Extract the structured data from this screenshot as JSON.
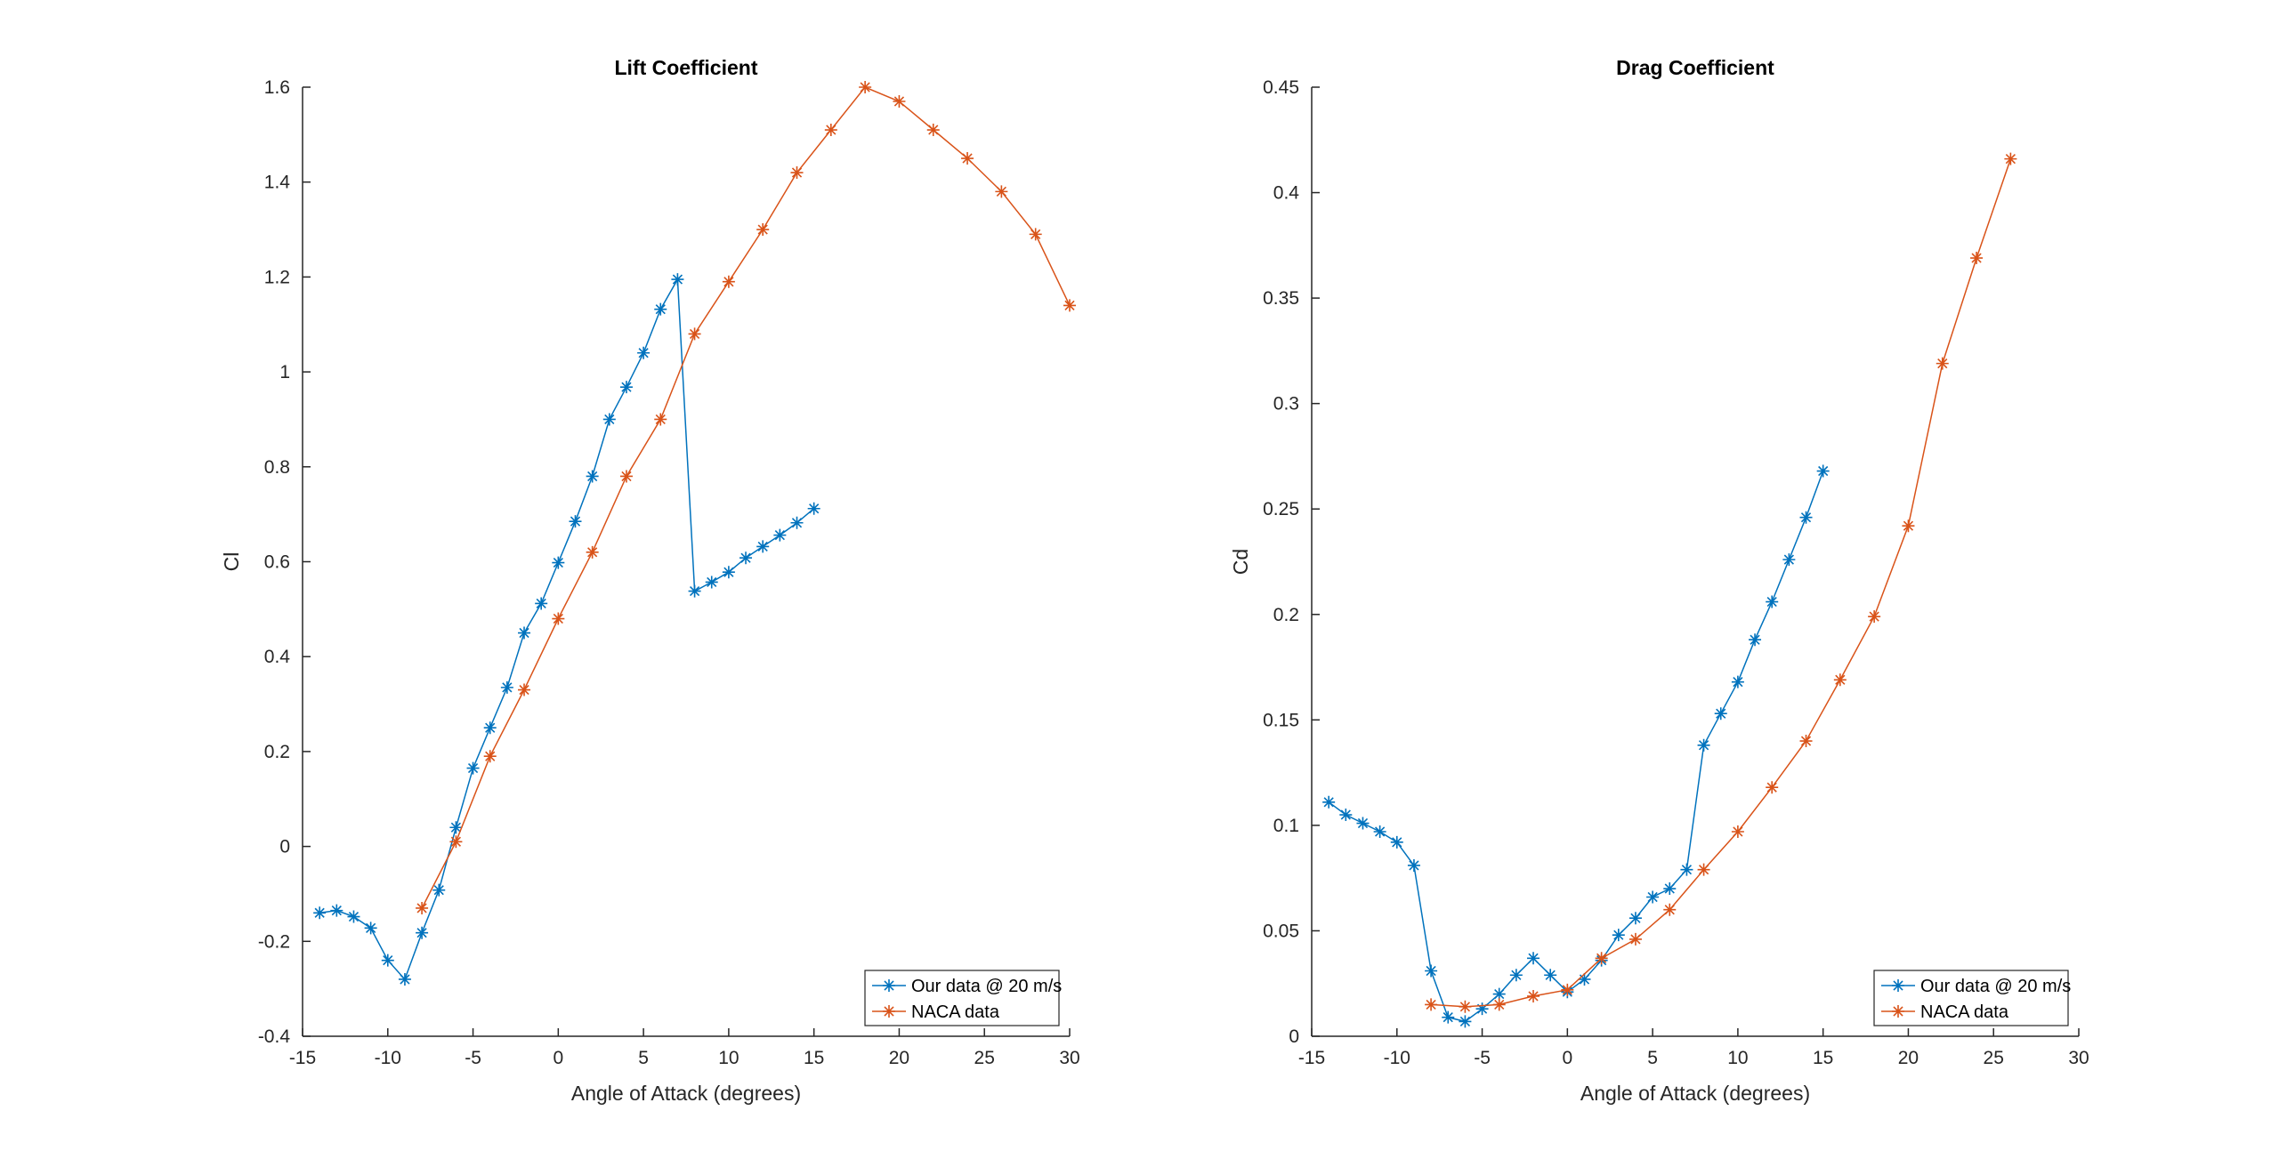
{
  "chart_data": [
    {
      "type": "line",
      "title": "Lift Coefficient",
      "xlabel": "Angle of Attack (degrees)",
      "ylabel": "Cl",
      "xlim": [
        -15,
        30
      ],
      "ylim": [
        -0.4,
        1.6
      ],
      "xticks": [
        -15,
        -10,
        -5,
        0,
        5,
        10,
        15,
        20,
        25,
        30
      ],
      "yticks": [
        -0.4,
        -0.2,
        0,
        0.2,
        0.4,
        0.6,
        0.8,
        1,
        1.2,
        1.4,
        1.6
      ],
      "grid": false,
      "legend_position": "bottom-right",
      "marker": "asterisk",
      "series": [
        {
          "name": "Our data @ 20 m/s",
          "color": "#0072BD",
          "x": [
            -14,
            -13,
            -12,
            -11,
            -10,
            -9,
            -8,
            -7,
            -6,
            -5,
            -4,
            -3,
            -2,
            -1,
            0,
            1,
            2,
            3,
            4,
            5,
            6,
            7,
            8,
            9,
            10,
            11,
            12,
            13,
            14,
            15
          ],
          "y": [
            -0.14,
            -0.135,
            -0.148,
            -0.172,
            -0.24,
            -0.28,
            -0.182,
            -0.092,
            0.04,
            0.165,
            0.25,
            0.335,
            0.45,
            0.512,
            0.598,
            0.685,
            0.78,
            0.9,
            0.968,
            1.04,
            1.132,
            1.195,
            0.538,
            0.557,
            0.578,
            0.608,
            0.632,
            0.656,
            0.682,
            0.712
          ]
        },
        {
          "name": "NACA data",
          "color": "#D95319",
          "x": [
            -8,
            -6,
            -4,
            -2,
            0,
            2,
            4,
            6,
            8,
            10,
            12,
            14,
            16,
            18,
            20,
            22,
            24,
            26,
            28,
            30
          ],
          "y": [
            -0.13,
            0.01,
            0.19,
            0.33,
            0.48,
            0.62,
            0.78,
            0.9,
            1.08,
            1.19,
            1.3,
            1.42,
            1.51,
            1.6,
            1.57,
            1.51,
            1.45,
            1.38,
            1.29,
            1.14
          ]
        }
      ]
    },
    {
      "type": "line",
      "title": "Drag Coefficient",
      "xlabel": "Angle of Attack (degrees)",
      "ylabel": "Cd",
      "xlim": [
        -15,
        30
      ],
      "ylim": [
        0,
        0.45
      ],
      "xticks": [
        -15,
        -10,
        -5,
        0,
        5,
        10,
        15,
        20,
        25,
        30
      ],
      "yticks": [
        0,
        0.05,
        0.1,
        0.15,
        0.2,
        0.25,
        0.3,
        0.35,
        0.4,
        0.45
      ],
      "grid": false,
      "legend_position": "bottom-right",
      "marker": "asterisk",
      "series": [
        {
          "name": "Our data @ 20 m/s",
          "color": "#0072BD",
          "x": [
            -14,
            -13,
            -12,
            -11,
            -10,
            -9,
            -8,
            -7,
            -6,
            -5,
            -4,
            -3,
            -2,
            -1,
            0,
            1,
            2,
            3,
            4,
            5,
            6,
            7,
            8,
            9,
            10,
            11,
            12,
            13,
            14,
            15
          ],
          "y": [
            0.111,
            0.105,
            0.101,
            0.097,
            0.092,
            0.081,
            0.031,
            0.009,
            0.007,
            0.013,
            0.02,
            0.029,
            0.037,
            0.029,
            0.021,
            0.027,
            0.036,
            0.048,
            0.056,
            0.066,
            0.07,
            0.079,
            0.138,
            0.153,
            0.168,
            0.188,
            0.206,
            0.226,
            0.246,
            0.268
          ]
        },
        {
          "name": "NACA data",
          "color": "#D95319",
          "x": [
            -8,
            -6,
            -4,
            -2,
            0,
            2,
            4,
            6,
            8,
            10,
            12,
            14,
            16,
            18,
            20,
            22,
            24,
            26
          ],
          "y": [
            0.015,
            0.014,
            0.015,
            0.019,
            0.022,
            0.037,
            0.046,
            0.06,
            0.079,
            0.097,
            0.118,
            0.14,
            0.169,
            0.199,
            0.242,
            0.319,
            0.369,
            0.416
          ]
        }
      ]
    }
  ]
}
